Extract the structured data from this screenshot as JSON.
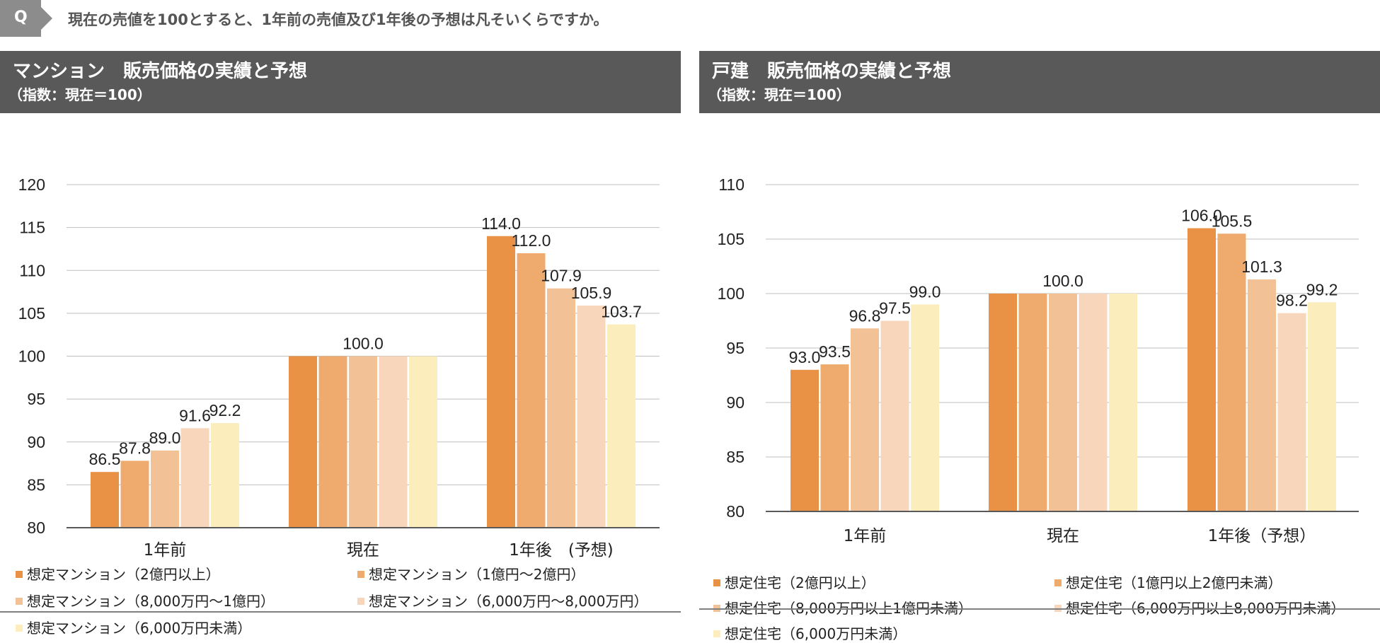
{
  "question": {
    "badge": "Q",
    "text": "現在の売値を100とすると、1年前の売値及び1年後の予想は凡そいくらですか。"
  },
  "panels": [
    {
      "title": "マンション　販売価格の実績と予想",
      "subtitle": "（指数：現在＝100）"
    },
    {
      "title": "戸建　販売価格の実績と予想",
      "subtitle": "（指数：現在＝100）"
    }
  ],
  "chart_data": [
    {
      "type": "bar",
      "title": "マンション　販売価格の実績と予想",
      "ylabel": "指数：現在＝100",
      "categories": [
        "1年前",
        "現在",
        "1年後　(予想)"
      ],
      "ylim": [
        80,
        120
      ],
      "ytick_step": 5,
      "yticks": [
        "80",
        "85",
        "90",
        "95",
        "100",
        "105",
        "110",
        "115",
        "120"
      ],
      "series": [
        {
          "name": "想定マンション（2億円以上）",
          "color": "#E99245",
          "values": [
            86.5,
            100.0,
            114.0
          ],
          "labels": [
            "86.5",
            null,
            "114.0"
          ]
        },
        {
          "name": "想定マンション（1億円～2億円）",
          "color": "#EFAB6E",
          "values": [
            87.8,
            100.0,
            112.0
          ],
          "labels": [
            "87.8",
            null,
            "112.0"
          ]
        },
        {
          "name": "想定マンション（8,000万円～1億円）",
          "color": "#F3C196",
          "values": [
            89.0,
            100.0,
            107.9
          ],
          "labels": [
            "89.0",
            "100.0",
            "107.9"
          ]
        },
        {
          "name": "想定マンション（6,000万円～8,000万円）",
          "color": "#F7D6BC",
          "values": [
            91.6,
            100.0,
            105.9
          ],
          "labels": [
            "91.6",
            null,
            "105.9"
          ]
        },
        {
          "name": "想定マンション（6,000万円未満）",
          "color": "#FBEDBC",
          "values": [
            92.2,
            100.0,
            103.7
          ],
          "labels": [
            "92.2",
            null,
            "103.7"
          ]
        }
      ]
    },
    {
      "type": "bar",
      "title": "戸建　販売価格の実績と予想",
      "ylabel": "指数：現在＝100",
      "categories": [
        "1年前",
        "現在",
        "1年後（予想）"
      ],
      "ylim": [
        80,
        110
      ],
      "ytick_step": 5,
      "yticks": [
        "80",
        "85",
        "90",
        "95",
        "100",
        "105",
        "110"
      ],
      "series": [
        {
          "name": "想定住宅（2億円以上）",
          "color": "#E99245",
          "values": [
            93.0,
            100.0,
            106.0
          ],
          "labels": [
            "93.0",
            null,
            "106.0"
          ]
        },
        {
          "name": "想定住宅（1億円以上2億円未満）",
          "color": "#EFAB6E",
          "values": [
            93.5,
            100.0,
            105.5
          ],
          "labels": [
            "93.5",
            null,
            "105.5"
          ]
        },
        {
          "name": "想定住宅（8,000万円以上1億円未満）",
          "color": "#F3C196",
          "values": [
            96.8,
            100.0,
            101.3
          ],
          "labels": [
            "96.8",
            "100.0",
            "101.3"
          ]
        },
        {
          "name": "想定住宅（6,000万円以上8,000万円未満）",
          "color": "#F7D6BC",
          "values": [
            97.5,
            100.0,
            98.2
          ],
          "labels": [
            "97.5",
            null,
            "98.2"
          ]
        },
        {
          "name": "想定住宅（6,000万円未満）",
          "color": "#FBEDBC",
          "values": [
            99.0,
            100.0,
            99.2
          ],
          "labels": [
            "99.0",
            null,
            "99.2"
          ]
        }
      ]
    }
  ]
}
